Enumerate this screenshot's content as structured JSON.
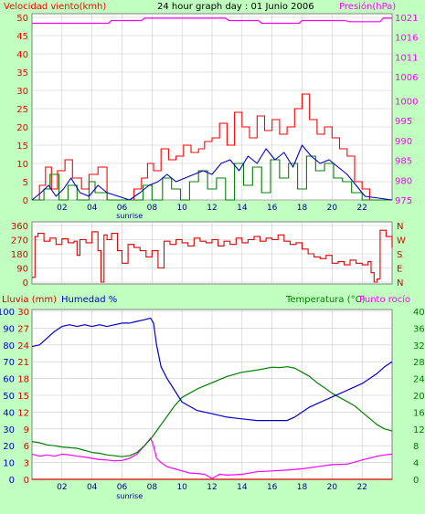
{
  "colors": {
    "background": "#C0FFC0",
    "plot_bg": "#FFFFFF",
    "grid": "#C8C8C8",
    "wind": "#FF0000",
    "wind_avg": "#0000CC",
    "gust_green": "#008000",
    "pressure": "#FF00FF",
    "direction": "#DD0000",
    "rain": "#DD0000",
    "humidity": "#0000CC",
    "temperature": "#008000",
    "dewpoint": "#FF00FF",
    "title": "#000000"
  },
  "chart_data": [
    {
      "type": "line",
      "title": "24 hour graph day : 01 Junio 2006",
      "ylabel_left": "Velocidad viento(kmh)",
      "ylabel_right": "Presión(hPa)",
      "xlim": [
        0,
        24
      ],
      "x_ticks": [
        "02",
        "04",
        "06",
        "08",
        "10",
        "12",
        "14",
        "16",
        "18",
        "20",
        "22"
      ],
      "x_tick_values": [
        2,
        4,
        6,
        8,
        10,
        12,
        14,
        16,
        18,
        20,
        22
      ],
      "sunrise_label": "sunrise",
      "sunrise_hour": 6.5,
      "ylim_left": [
        0,
        50
      ],
      "yticks_left": [
        "0",
        "5",
        "10",
        "15",
        "20",
        "25",
        "30",
        "35",
        "40",
        "45",
        "50"
      ],
      "ylim_right": [
        975,
        1021
      ],
      "yticks_right": [
        "975",
        "980",
        "985",
        "990",
        "995",
        "1000",
        "1006",
        "1011",
        "1016",
        "1021"
      ],
      "series": [
        {
          "name": "Presión",
          "axis": "right",
          "x": [
            0,
            2,
            2.2,
            5.1,
            5.3,
            7.3,
            7.5,
            12.9,
            13.1,
            15.1,
            15.3,
            17.8,
            18,
            20.9,
            21.1,
            23.2,
            23.4,
            24
          ],
          "values": [
            1019.5,
            1019.5,
            1019.5,
            1019.5,
            1020.2,
            1020.2,
            1020.8,
            1020.8,
            1020.2,
            1020.2,
            1019.5,
            1019.5,
            1020.2,
            1020.2,
            1019.9,
            1019.9,
            1020.8,
            1020.8
          ]
        },
        {
          "name": "",
          "axis": "left",
          "x": [
            0,
            0.5,
            0.9,
            1.3,
            1.7,
            2.2,
            2.7,
            3.3,
            3.8,
            4.4,
            5.0,
            6.0,
            6.8,
            7.3,
            7.7,
            8.1,
            8.6,
            9.1,
            9.6,
            10.1,
            10.6,
            11.1,
            11.5,
            12.0,
            12.5,
            13.0,
            13.5,
            14.0,
            14.5,
            15.0,
            15.5,
            16.0,
            16.5,
            17.0,
            17.5,
            18.0,
            18.5,
            19.0,
            19.5,
            20.0,
            20.5,
            21.0,
            21.5,
            22.0,
            22.5,
            24
          ],
          "values": [
            0,
            4,
            9,
            3,
            8,
            11,
            6,
            3,
            7,
            9,
            0,
            0,
            3,
            6,
            10,
            8,
            14,
            11,
            12,
            15,
            13,
            14,
            16,
            17,
            21,
            15,
            24,
            20,
            17,
            23,
            19,
            22,
            18,
            20,
            25,
            29,
            22,
            18,
            20,
            17,
            14,
            12,
            5,
            3,
            0,
            0
          ]
        },
        {
          "name": "",
          "axis": "left",
          "x": [
            0,
            0.6,
            1.1,
            1.6,
            2.1,
            2.6,
            3.2,
            3.8,
            4.4,
            5.0,
            6.5,
            7.2,
            7.8,
            8.4,
            9.0,
            9.6,
            10.2,
            10.8,
            11.4,
            12.0,
            12.6,
            13.2,
            13.8,
            14.4,
            15.0,
            15.6,
            16.2,
            16.8,
            17.4,
            18.0,
            18.6,
            19.2,
            19.8,
            20.4,
            21.0,
            21.6,
            22.2,
            24
          ],
          "values": [
            0,
            2,
            4,
            1,
            3,
            6,
            2,
            1,
            4,
            2,
            0,
            2,
            4,
            5,
            7,
            5,
            6,
            7,
            8,
            7,
            10,
            11,
            8,
            12,
            10,
            14,
            11,
            13,
            9,
            15,
            12,
            10,
            11,
            9,
            7,
            4,
            1,
            0
          ]
        },
        {
          "name": "",
          "axis": "left",
          "x": [
            0,
            0.8,
            1.2,
            1.8,
            2.4,
            3.0,
            3.8,
            4.2,
            5.0,
            6.6,
            7.4,
            8.0,
            8.7,
            9.3,
            9.9,
            10.5,
            11.1,
            11.7,
            12.3,
            12.9,
            13.5,
            14.1,
            14.7,
            15.3,
            15.9,
            16.5,
            17.1,
            17.7,
            18.3,
            18.9,
            19.5,
            20.1,
            20.7,
            21.3,
            22.0,
            24
          ],
          "values": [
            0,
            3,
            7,
            0,
            4,
            0,
            5,
            2,
            0,
            0,
            4,
            0,
            6,
            3,
            0,
            5,
            8,
            3,
            6,
            0,
            10,
            4,
            9,
            2,
            11,
            6,
            10,
            3,
            12,
            8,
            10,
            6,
            5,
            2,
            0,
            0
          ]
        }
      ]
    },
    {
      "type": "line",
      "title": "",
      "xlim": [
        0,
        24
      ],
      "ylim": [
        0,
        360
      ],
      "yticks_left": [
        "0",
        "90",
        "180",
        "270",
        "360"
      ],
      "yticks_right": [
        "N",
        "E",
        "S",
        "W",
        "N"
      ],
      "series": [
        {
          "name": "",
          "x": [
            0,
            0.2,
            0.4,
            0.8,
            1.2,
            1.6,
            2.0,
            2.4,
            2.8,
            3.0,
            3.2,
            3.6,
            4.0,
            4.4,
            4.6,
            4.8,
            5.0,
            5.3,
            5.7,
            6.0,
            6.4,
            6.8,
            7.2,
            7.6,
            8.0,
            8.4,
            8.8,
            9.2,
            9.6,
            10.0,
            10.4,
            10.8,
            11.2,
            11.6,
            12.0,
            12.4,
            12.8,
            13.2,
            13.6,
            14.0,
            14.4,
            14.8,
            15.2,
            15.6,
            16.0,
            16.4,
            16.8,
            17.2,
            17.6,
            18.0,
            18.4,
            18.8,
            19.2,
            19.6,
            20.0,
            20.4,
            20.8,
            21.2,
            21.6,
            22.0,
            22.4,
            22.6,
            22.8,
            23.0,
            23.2,
            23.6,
            24
          ],
          "values": [
            30,
            290,
            310,
            260,
            280,
            240,
            275,
            250,
            260,
            170,
            270,
            250,
            320,
            200,
            0,
            300,
            270,
            310,
            200,
            120,
            240,
            220,
            200,
            160,
            200,
            90,
            260,
            240,
            270,
            250,
            230,
            280,
            260,
            250,
            270,
            230,
            260,
            240,
            280,
            250,
            270,
            290,
            260,
            280,
            270,
            300,
            260,
            240,
            250,
            210,
            180,
            160,
            150,
            170,
            120,
            130,
            110,
            140,
            120,
            110,
            130,
            60,
            0,
            20,
            330,
            290,
            220
          ]
        }
      ]
    },
    {
      "type": "line",
      "title": "",
      "ylabel_left_1": "Lluvia (mm)",
      "ylabel_left_2": "Humedad %",
      "ylabel_right": "Temperatura (°C)",
      "ylabel_right_2": "Punto rocío",
      "xlim": [
        0,
        24
      ],
      "x_ticks": [
        "02",
        "04",
        "06",
        "08",
        "10",
        "12",
        "14",
        "16",
        "18",
        "20",
        "22"
      ],
      "x_tick_values": [
        2,
        4,
        6,
        8,
        10,
        12,
        14,
        16,
        18,
        20,
        22
      ],
      "sunrise_label": "sunrise",
      "sunrise_hour": 6.5,
      "ylim_humidity": [
        0,
        100
      ],
      "ylim_rain": [
        0,
        30
      ],
      "ylim_temp": [
        0,
        40
      ],
      "yticks_humidity": [
        "0",
        "10",
        "20",
        "30",
        "40",
        "50",
        "60",
        "70",
        "80",
        "90",
        "100"
      ],
      "yticks_rain": [
        "0",
        "3",
        "6",
        "9",
        "12",
        "15",
        "18",
        "21",
        "24",
        "27",
        "30"
      ],
      "yticks_temp": [
        "0",
        "4",
        "8",
        "12",
        "16",
        "20",
        "24",
        "28",
        "32",
        "36",
        "40"
      ],
      "series": [
        {
          "name": "Humedad %",
          "axis": "humidity",
          "x": [
            0,
            0.5,
            1.0,
            1.5,
            2.0,
            2.5,
            3.0,
            3.5,
            4.0,
            4.5,
            5.0,
            5.5,
            6.0,
            6.5,
            7.0,
            7.5,
            7.9,
            8.1,
            8.3,
            8.6,
            9.0,
            9.5,
            10.0,
            11.0,
            12.0,
            13.0,
            14.0,
            15.0,
            16.0,
            17.0,
            17.5,
            18.0,
            18.5,
            19.0,
            19.5,
            20.0,
            20.5,
            21.0,
            21.5,
            22.0,
            22.5,
            23.0,
            23.5,
            24
          ],
          "values": [
            79,
            80,
            84,
            88,
            91,
            92,
            91,
            92,
            91,
            92,
            91,
            92,
            93,
            93,
            94,
            95,
            96,
            93,
            80,
            67,
            60,
            53,
            46,
            41,
            39,
            37,
            36,
            35,
            35,
            35,
            37,
            40,
            43,
            45,
            47,
            49,
            51,
            53,
            55,
            57,
            60,
            63,
            67,
            70
          ]
        },
        {
          "name": "Temperatura",
          "axis": "temp",
          "x": [
            0,
            0.5,
            1.0,
            1.5,
            2.0,
            3.0,
            4.0,
            4.5,
            5.0,
            5.5,
            6.0,
            6.5,
            7.0,
            7.5,
            8.0,
            8.5,
            9.0,
            9.5,
            10.0,
            11.0,
            12.0,
            13.0,
            14.0,
            15.0,
            16.0,
            16.5,
            17.0,
            17.5,
            18.0,
            18.5,
            19.0,
            19.5,
            20.0,
            20.5,
            21.0,
            21.5,
            22.0,
            22.5,
            23.0,
            23.5,
            24
          ],
          "values": [
            9,
            8.7,
            8.2,
            8,
            7.7,
            7.4,
            6.4,
            6.2,
            5.8,
            5.6,
            5.4,
            5.6,
            6.4,
            8,
            10,
            12.5,
            15,
            17.5,
            19.5,
            21.5,
            23,
            24.5,
            25.5,
            26,
            26.7,
            26.6,
            26.8,
            26.5,
            25.5,
            24.5,
            23,
            21.8,
            20.5,
            19.5,
            18.5,
            17.5,
            16,
            14.5,
            13,
            12,
            11.5
          ]
        },
        {
          "name": "Punto rocío",
          "axis": "temp",
          "x": [
            0,
            0.5,
            1.0,
            1.5,
            2.0,
            2.5,
            3.0,
            3.5,
            4.0,
            4.5,
            5.0,
            5.5,
            6.0,
            6.5,
            7.0,
            7.5,
            7.9,
            8.1,
            8.3,
            8.6,
            9.0,
            9.5,
            10.0,
            10.5,
            11.0,
            11.5,
            12.0,
            12.5,
            13.0,
            14.0,
            15.0,
            16.0,
            17.0,
            18.0,
            19.0,
            20.0,
            21.0,
            22.0,
            23.0,
            23.5,
            24
          ],
          "values": [
            6,
            5.5,
            5.8,
            5.5,
            6,
            5.8,
            5.5,
            5.3,
            5,
            4.7,
            4.6,
            4.4,
            4.5,
            5,
            6,
            8,
            9.8,
            8,
            5,
            4,
            3,
            2.5,
            2,
            1.5,
            1.4,
            1.2,
            0.2,
            1.2,
            1,
            1.2,
            1.8,
            2,
            2.2,
            2.5,
            3,
            3.5,
            3.6,
            4.6,
            5.5,
            5.8,
            6
          ]
        },
        {
          "name": "Lluvia",
          "axis": "rain",
          "x": [
            0,
            24
          ],
          "values": [
            0,
            0
          ]
        }
      ]
    }
  ]
}
